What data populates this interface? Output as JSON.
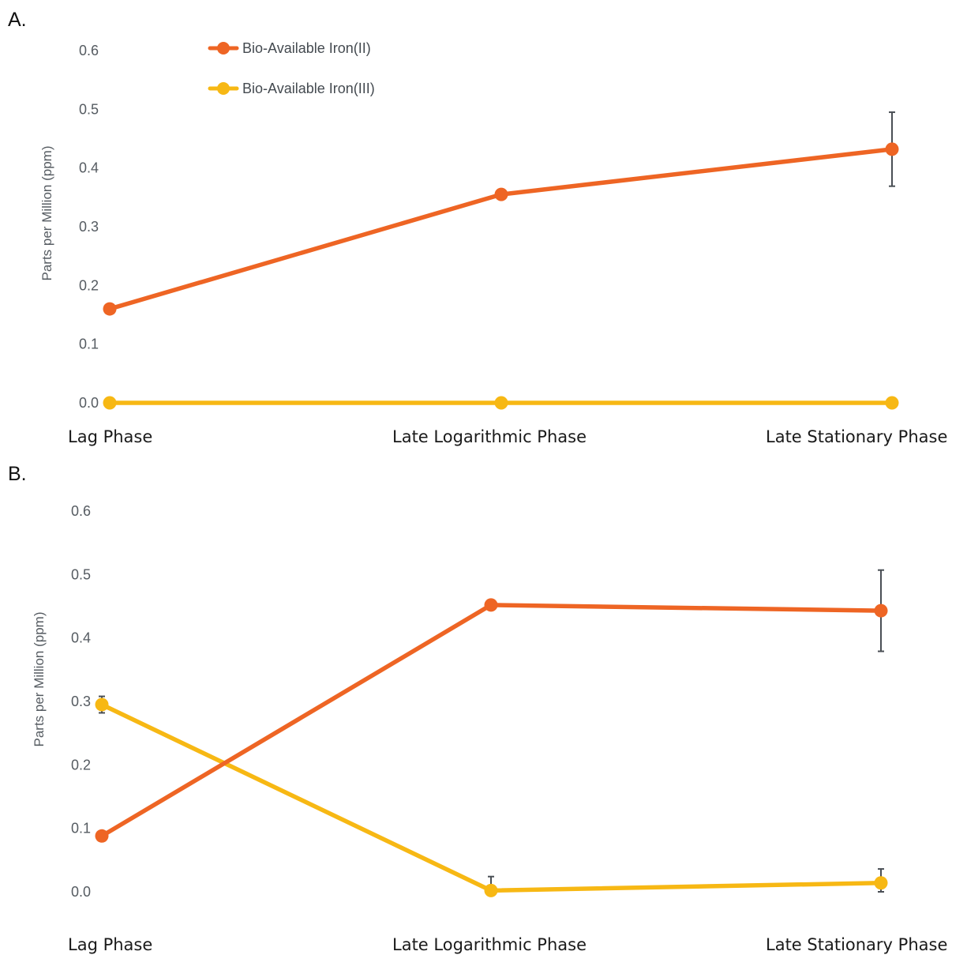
{
  "legend": {
    "placement": "top-left",
    "items": [
      {
        "name": "Bio-Available Iron(II)",
        "color": "#ee6524"
      },
      {
        "name": "Bio-Available Iron(III)",
        "color": "#f7b814"
      }
    ]
  },
  "chart_data": [
    {
      "panel": "A.",
      "type": "line",
      "ylabel": "Parts per Million (ppm)",
      "xlabel": "",
      "ylim": [
        0,
        0.6
      ],
      "yticks": [
        "0.0",
        "0.1",
        "0.2",
        "0.3",
        "0.4",
        "0.5",
        "0.6"
      ],
      "grid": false,
      "categories": [
        "Lag Phase",
        "Late Logarithmic Phase",
        "Late Stationary Phase"
      ],
      "series": [
        {
          "name": "Bio-Available Iron(II)",
          "color": "#ee6524",
          "values": [
            0.16,
            0.355,
            0.432
          ],
          "errors": [
            null,
            null,
            0.063
          ]
        },
        {
          "name": "Bio-Available Iron(III)",
          "color": "#f7b814",
          "values": [
            0.0,
            0.0,
            0.0
          ],
          "errors": [
            null,
            null,
            null
          ]
        }
      ]
    },
    {
      "panel": "B.",
      "type": "line",
      "ylabel": "Parts per Million (ppm)",
      "xlabel": "",
      "ylim": [
        0,
        0.6
      ],
      "yticks": [
        "0.0",
        "0.1",
        "0.2",
        "0.3",
        "0.4",
        "0.5",
        "0.6"
      ],
      "grid": false,
      "categories": [
        "Lag Phase",
        "Late Logarithmic Phase",
        "Late Stationary Phase"
      ],
      "series": [
        {
          "name": "Bio-Available Iron(II)",
          "color": "#ee6524",
          "values": [
            0.088,
            0.452,
            0.443
          ],
          "errors": [
            null,
            null,
            0.064
          ]
        },
        {
          "name": "Bio-Available Iron(III)",
          "color": "#f7b814",
          "values": [
            0.295,
            0.002,
            0.014
          ],
          "errors": [
            0.013,
            0.022,
            0.022
          ]
        }
      ]
    }
  ]
}
